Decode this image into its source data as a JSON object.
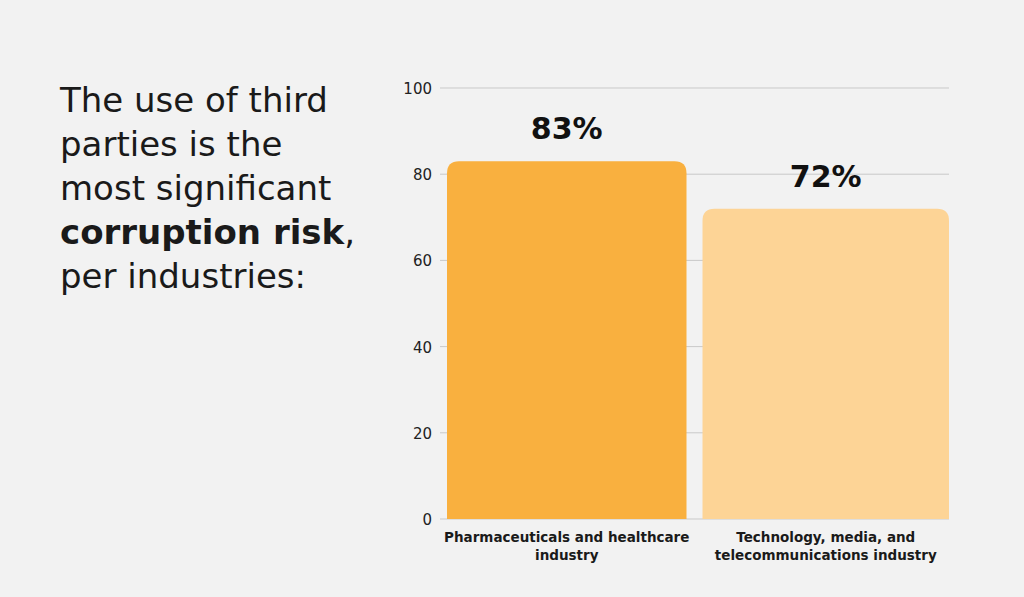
{
  "chart_data": {
    "type": "bar",
    "title": "The use of third parties is the most significant corruption risk, per industries:",
    "title_emphasis": "corruption risk",
    "categories": [
      "Pharmaceuticals and healthcare industry",
      "Technology, media, and telecommunications industry"
    ],
    "values": [
      83,
      72
    ],
    "value_labels": [
      "83%",
      "72%"
    ],
    "colors": [
      "#f9b03f",
      "#fdd496"
    ],
    "ylim": [
      0,
      100
    ],
    "yticks": [
      0,
      20,
      40,
      60,
      80,
      100
    ],
    "grid": true,
    "data_labels": true
  }
}
